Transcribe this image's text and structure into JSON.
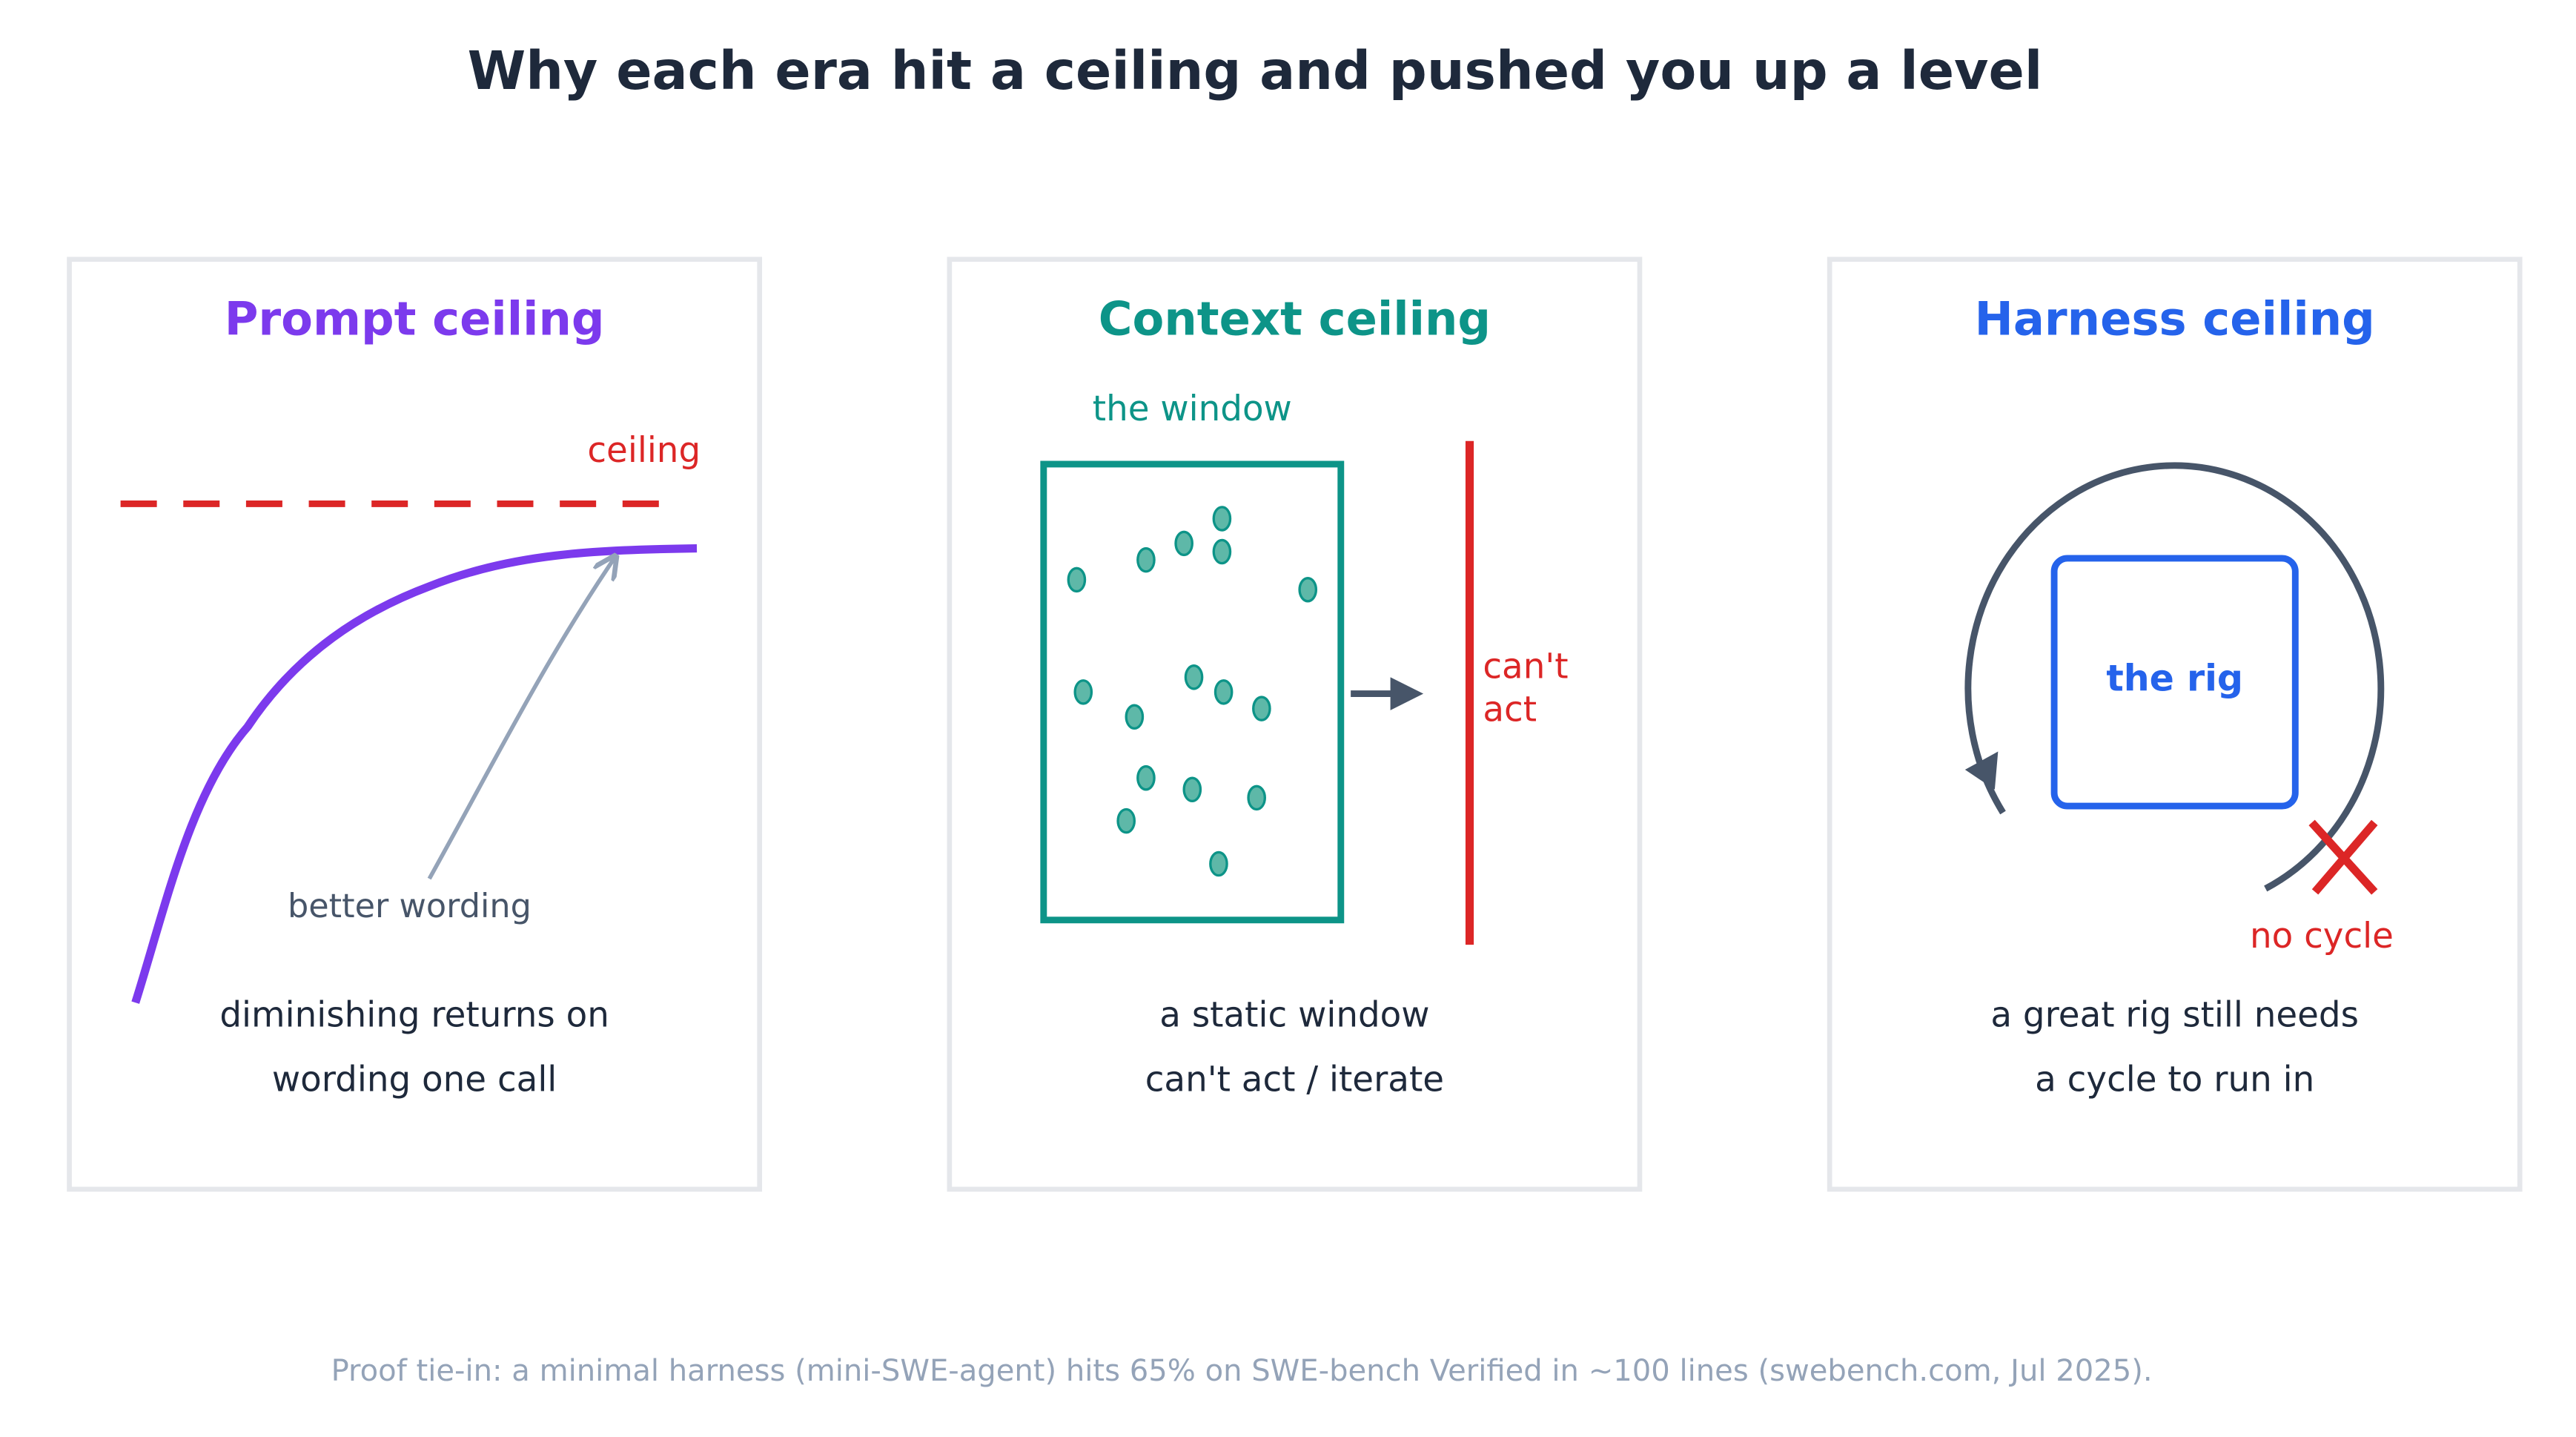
{
  "title": "Why each era hit a ceiling and pushed you up a level",
  "panels": [
    {
      "title": "Prompt ceiling",
      "labels": [
        "ceiling",
        "better wording"
      ],
      "caption": [
        "diminishing returns on",
        "wording one call"
      ]
    },
    {
      "title": "Context ceiling",
      "labels": [
        "the window",
        "can't",
        "act"
      ],
      "caption": [
        "a static window",
        "can't act / iterate"
      ]
    },
    {
      "title": "Harness ceiling",
      "labels": [
        "the rig",
        "no cycle"
      ],
      "caption": [
        "a great rig still needs",
        "a cycle to run in"
      ]
    }
  ],
  "footer": "Proof tie-in: a minimal harness (mini-SWE-agent) hits 65% on SWE-bench Verified in ~100 lines (swebench.com, Jul 2025)."
}
